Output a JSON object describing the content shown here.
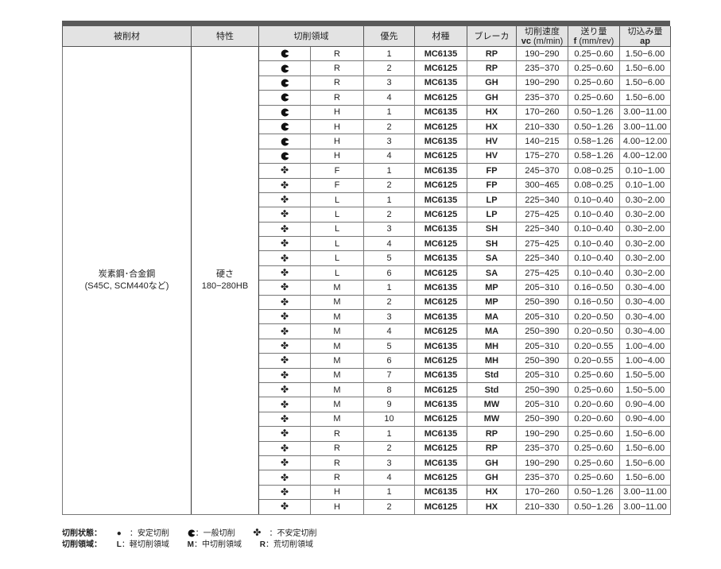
{
  "header": {
    "work_material": "被削材",
    "property": "特性",
    "cutting_region": "切削領域",
    "priority": "優先",
    "grade": "材種",
    "breaker": "ブレーカ",
    "speed_l1": "切削速度",
    "speed_sym": "vc",
    "speed_unit": "(m/min)",
    "feed_l1": "送り量",
    "feed_sym": "f",
    "feed_unit": "(mm/rev)",
    "depth_l1": "切込み量",
    "depth_sym": "ap"
  },
  "material": {
    "name": "炭素鋼･合金鋼",
    "examples": "(S45C, SCM440など)"
  },
  "property": {
    "name": "硬さ",
    "value": "180−280HB"
  },
  "rows": [
    {
      "state": "general",
      "region": "R",
      "priority": "1",
      "grade": "MC6135",
      "breaker": "RP",
      "vc": "190−290",
      "f": "0.25−0.60",
      "ap": "1.50−6.00"
    },
    {
      "state": "general",
      "region": "R",
      "priority": "2",
      "grade": "MC6125",
      "breaker": "RP",
      "vc": "235−370",
      "f": "0.25−0.60",
      "ap": "1.50−6.00"
    },
    {
      "state": "general",
      "region": "R",
      "priority": "3",
      "grade": "MC6135",
      "breaker": "GH",
      "vc": "190−290",
      "f": "0.25−0.60",
      "ap": "1.50−6.00"
    },
    {
      "state": "general",
      "region": "R",
      "priority": "4",
      "grade": "MC6125",
      "breaker": "GH",
      "vc": "235−370",
      "f": "0.25−0.60",
      "ap": "1.50−6.00"
    },
    {
      "state": "general",
      "region": "H",
      "priority": "1",
      "grade": "MC6135",
      "breaker": "HX",
      "vc": "170−260",
      "f": "0.50−1.26",
      "ap": "3.00−11.00"
    },
    {
      "state": "general",
      "region": "H",
      "priority": "2",
      "grade": "MC6125",
      "breaker": "HX",
      "vc": "210−330",
      "f": "0.50−1.26",
      "ap": "3.00−11.00"
    },
    {
      "state": "general",
      "region": "H",
      "priority": "3",
      "grade": "MC6135",
      "breaker": "HV",
      "vc": "140−215",
      "f": "0.58−1.26",
      "ap": "4.00−12.00"
    },
    {
      "state": "general",
      "region": "H",
      "priority": "4",
      "grade": "MC6125",
      "breaker": "HV",
      "vc": "175−270",
      "f": "0.58−1.26",
      "ap": "4.00−12.00"
    },
    {
      "state": "unstable",
      "region": "F",
      "priority": "1",
      "grade": "MC6135",
      "breaker": "FP",
      "vc": "245−370",
      "f": "0.08−0.25",
      "ap": "0.10−1.00"
    },
    {
      "state": "unstable",
      "region": "F",
      "priority": "2",
      "grade": "MC6125",
      "breaker": "FP",
      "vc": "300−465",
      "f": "0.08−0.25",
      "ap": "0.10−1.00"
    },
    {
      "state": "unstable",
      "region": "L",
      "priority": "1",
      "grade": "MC6135",
      "breaker": "LP",
      "vc": "225−340",
      "f": "0.10−0.40",
      "ap": "0.30−2.00"
    },
    {
      "state": "unstable",
      "region": "L",
      "priority": "2",
      "grade": "MC6125",
      "breaker": "LP",
      "vc": "275−425",
      "f": "0.10−0.40",
      "ap": "0.30−2.00"
    },
    {
      "state": "unstable",
      "region": "L",
      "priority": "3",
      "grade": "MC6135",
      "breaker": "SH",
      "vc": "225−340",
      "f": "0.10−0.40",
      "ap": "0.30−2.00"
    },
    {
      "state": "unstable",
      "region": "L",
      "priority": "4",
      "grade": "MC6125",
      "breaker": "SH",
      "vc": "275−425",
      "f": "0.10−0.40",
      "ap": "0.30−2.00"
    },
    {
      "state": "unstable",
      "region": "L",
      "priority": "5",
      "grade": "MC6135",
      "breaker": "SA",
      "vc": "225−340",
      "f": "0.10−0.40",
      "ap": "0.30−2.00"
    },
    {
      "state": "unstable",
      "region": "L",
      "priority": "6",
      "grade": "MC6125",
      "breaker": "SA",
      "vc": "275−425",
      "f": "0.10−0.40",
      "ap": "0.30−2.00"
    },
    {
      "state": "unstable",
      "region": "M",
      "priority": "1",
      "grade": "MC6135",
      "breaker": "MP",
      "vc": "205−310",
      "f": "0.16−0.50",
      "ap": "0.30−4.00"
    },
    {
      "state": "unstable",
      "region": "M",
      "priority": "2",
      "grade": "MC6125",
      "breaker": "MP",
      "vc": "250−390",
      "f": "0.16−0.50",
      "ap": "0.30−4.00"
    },
    {
      "state": "unstable",
      "region": "M",
      "priority": "3",
      "grade": "MC6135",
      "breaker": "MA",
      "vc": "205−310",
      "f": "0.20−0.50",
      "ap": "0.30−4.00"
    },
    {
      "state": "unstable",
      "region": "M",
      "priority": "4",
      "grade": "MC6125",
      "breaker": "MA",
      "vc": "250−390",
      "f": "0.20−0.50",
      "ap": "0.30−4.00"
    },
    {
      "state": "unstable",
      "region": "M",
      "priority": "5",
      "grade": "MC6135",
      "breaker": "MH",
      "vc": "205−310",
      "f": "0.20−0.55",
      "ap": "1.00−4.00"
    },
    {
      "state": "unstable",
      "region": "M",
      "priority": "6",
      "grade": "MC6125",
      "breaker": "MH",
      "vc": "250−390",
      "f": "0.20−0.55",
      "ap": "1.00−4.00"
    },
    {
      "state": "unstable",
      "region": "M",
      "priority": "7",
      "grade": "MC6135",
      "breaker": "Std",
      "vc": "205−310",
      "f": "0.25−0.60",
      "ap": "1.50−5.00"
    },
    {
      "state": "unstable",
      "region": "M",
      "priority": "8",
      "grade": "MC6125",
      "breaker": "Std",
      "vc": "250−390",
      "f": "0.25−0.60",
      "ap": "1.50−5.00"
    },
    {
      "state": "unstable",
      "region": "M",
      "priority": "9",
      "grade": "MC6135",
      "breaker": "MW",
      "vc": "205−310",
      "f": "0.20−0.60",
      "ap": "0.90−4.00"
    },
    {
      "state": "unstable",
      "region": "M",
      "priority": "10",
      "grade": "MC6125",
      "breaker": "MW",
      "vc": "250−390",
      "f": "0.20−0.60",
      "ap": "0.90−4.00"
    },
    {
      "state": "unstable",
      "region": "R",
      "priority": "1",
      "grade": "MC6135",
      "breaker": "RP",
      "vc": "190−290",
      "f": "0.25−0.60",
      "ap": "1.50−6.00"
    },
    {
      "state": "unstable",
      "region": "R",
      "priority": "2",
      "grade": "MC6125",
      "breaker": "RP",
      "vc": "235−370",
      "f": "0.25−0.60",
      "ap": "1.50−6.00"
    },
    {
      "state": "unstable",
      "region": "R",
      "priority": "3",
      "grade": "MC6135",
      "breaker": "GH",
      "vc": "190−290",
      "f": "0.25−0.60",
      "ap": "1.50−6.00"
    },
    {
      "state": "unstable",
      "region": "R",
      "priority": "4",
      "grade": "MC6125",
      "breaker": "GH",
      "vc": "235−370",
      "f": "0.25−0.60",
      "ap": "1.50−6.00"
    },
    {
      "state": "unstable",
      "region": "H",
      "priority": "1",
      "grade": "MC6135",
      "breaker": "HX",
      "vc": "170−260",
      "f": "0.50−1.26",
      "ap": "3.00−11.00"
    },
    {
      "state": "unstable",
      "region": "H",
      "priority": "2",
      "grade": "MC6125",
      "breaker": "HX",
      "vc": "210−330",
      "f": "0.50−1.26",
      "ap": "3.00−11.00"
    }
  ],
  "legend": {
    "state_label": "切削状態：",
    "stable": "：安定切削",
    "general": "：一般切削",
    "unstable": "：不安定切削",
    "region_label": "切削領域：",
    "light_key": "L",
    "light": "：軽切削領域",
    "medium_key": "M",
    "medium": "：中切削領域",
    "rough_key": "R",
    "rough": "：荒切削領域"
  },
  "colors": {
    "header_bg": "#e3e3e3",
    "band": "#5a5a5a",
    "icon": "#111111"
  }
}
